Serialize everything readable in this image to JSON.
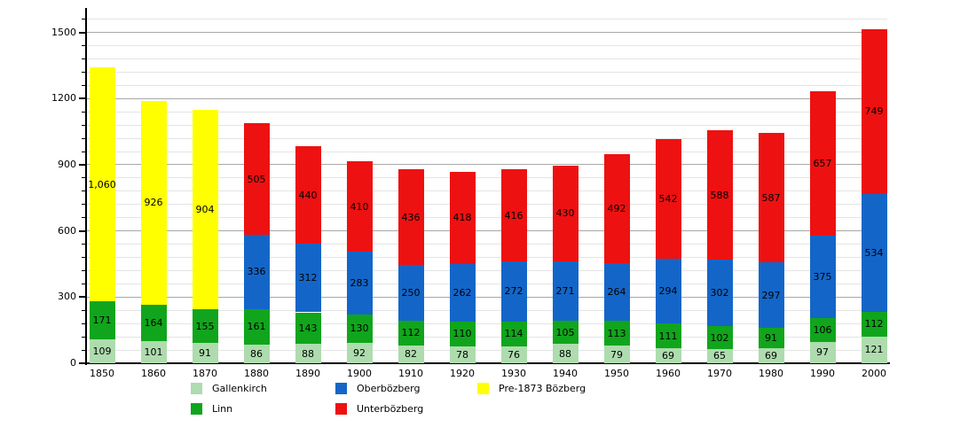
{
  "chart_data": {
    "type": "bar",
    "stacked": true,
    "title": "",
    "xlabel": "",
    "ylabel": "",
    "categories": [
      "1850",
      "1860",
      "1870",
      "1880",
      "1890",
      "1900",
      "1910",
      "1920",
      "1930",
      "1940",
      "1950",
      "1960",
      "1970",
      "1980",
      "1990",
      "2000"
    ],
    "series": [
      {
        "name": "Gallenkirch",
        "color": "#aedcae",
        "values": [
          109,
          101,
          91,
          86,
          88,
          92,
          82,
          78,
          76,
          88,
          79,
          69,
          65,
          69,
          97,
          121
        ]
      },
      {
        "name": "Linn",
        "color": "#10a51c",
        "values": [
          171,
          164,
          155,
          161,
          143,
          130,
          112,
          110,
          114,
          105,
          113,
          111,
          102,
          91,
          106,
          112
        ]
      },
      {
        "name": "Oberbözberg",
        "color": "#1366c8",
        "values": [
          0,
          0,
          0,
          336,
          312,
          283,
          250,
          262,
          272,
          271,
          264,
          294,
          302,
          297,
          375,
          534
        ]
      },
      {
        "name": "Unterbözberg",
        "color": "#ee1111",
        "values": [
          0,
          0,
          0,
          505,
          440,
          410,
          436,
          418,
          416,
          430,
          492,
          542,
          588,
          587,
          657,
          749
        ]
      },
      {
        "name": "Pre-1873 Bözberg",
        "color": "#ffff00",
        "values": [
          1060,
          926,
          904,
          0,
          0,
          0,
          0,
          0,
          0,
          0,
          0,
          0,
          0,
          0,
          0,
          0
        ]
      }
    ],
    "totals": [
      1340,
      1191,
      1150,
      1088,
      983,
      915,
      880,
      868,
      878,
      894,
      948,
      1016,
      1057,
      1044,
      1235,
      1516
    ],
    "ylim": [
      0,
      1600
    ],
    "yticks": [
      0,
      300,
      600,
      900,
      1200,
      1500
    ],
    "minor_grid_step": 60,
    "grid": true,
    "grid_major_color": "#a8a8a8",
    "grid_minor_color": "#e4e4e4",
    "axis_color": "#000000",
    "legend_position": "bottom",
    "legend_columns": [
      [
        "Gallenkirch",
        "Linn"
      ],
      [
        "Oberbözberg",
        "Unterbözberg"
      ],
      [
        "Pre-1873 Bözberg"
      ]
    ]
  }
}
